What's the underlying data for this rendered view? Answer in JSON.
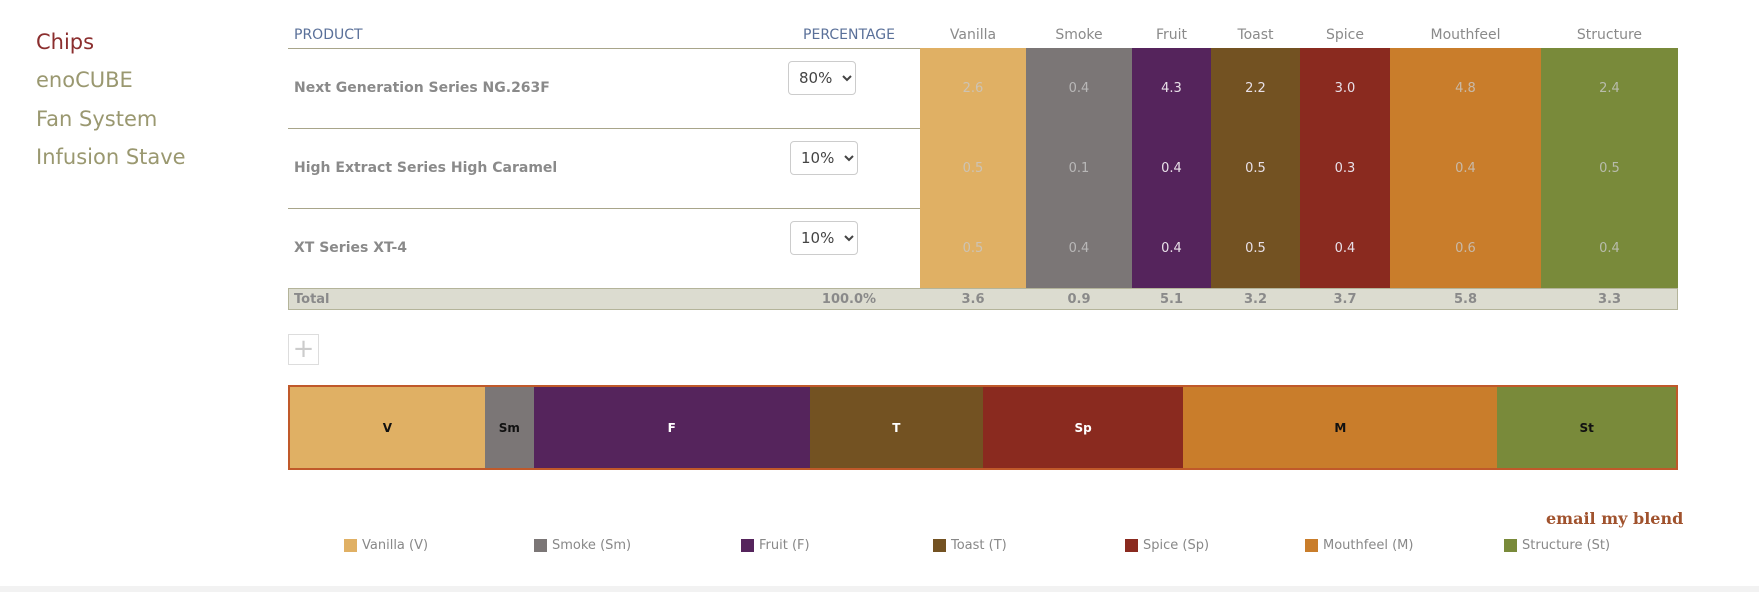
{
  "nav": [
    "Chips",
    "enoCUBE",
    "Fan System",
    "Infusion Stave"
  ],
  "table": {
    "headers": [
      "PRODUCT",
      "PERCENTAGE",
      "Vanilla",
      "Smoke",
      "Fruit",
      "Toast",
      "Spice",
      "Mouthfeel",
      "Structure"
    ],
    "rows": [
      {
        "product": "Next Generation Series NG.263F",
        "percentage": "80%",
        "values": [
          "2.6",
          "0.4",
          "4.3",
          "2.2",
          "3.0",
          "4.8",
          "2.4"
        ]
      },
      {
        "product": "High Extract Series High Caramel",
        "percentage": "10%",
        "values": [
          "0.5",
          "0.1",
          "0.4",
          "0.5",
          "0.3",
          "0.4",
          "0.5"
        ]
      },
      {
        "product": "XT Series XT-4",
        "percentage": "10%",
        "values": [
          "0.5",
          "0.4",
          "0.4",
          "0.5",
          "0.4",
          "0.6",
          "0.4"
        ]
      }
    ],
    "total": {
      "label": "Total",
      "percentage": "100.0%",
      "values": [
        3.6,
        0.9,
        5.1,
        3.2,
        3.7,
        5.8,
        3.3
      ]
    }
  },
  "column_colors": [
    "#e0b064",
    "#7b7676",
    "#55245c",
    "#735222",
    "#8a2a1f",
    "#c97d2b",
    "#798a3a"
  ],
  "blend_bar": {
    "labels": [
      "V",
      "Sm",
      "F",
      "T",
      "Sp",
      "M",
      "St"
    ]
  },
  "legend": [
    "Vanilla (V)",
    "Smoke (Sm)",
    "Fruit (F)",
    "Toast (T)",
    "Spice (Sp)",
    "Mouthfeel (M)",
    "Structure (St)"
  ],
  "email": "email my blend"
}
